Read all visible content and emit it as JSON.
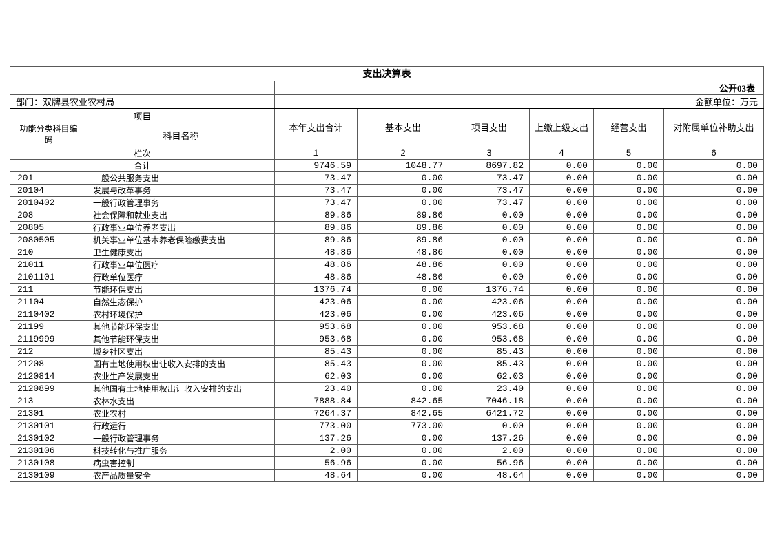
{
  "sheet": {
    "title": "支出决算表",
    "form_code": "公开03表",
    "department": "部门：双牌县农业农村局",
    "unit": "金额单位：万元"
  },
  "header": {
    "project_group": "项目",
    "code_col": "功能分类科目编码",
    "name_col": "科目名称",
    "value_cols": [
      "本年支出合计",
      "基本支出",
      "项目支出",
      "上缴上级支出",
      "经营支出",
      "对附属单位补助支出"
    ],
    "lanci_label": "栏次",
    "col_numbers": [
      "1",
      "2",
      "3",
      "4",
      "5",
      "6"
    ]
  },
  "rows": [
    {
      "merged": true,
      "code": "",
      "name": "合计",
      "values": [
        "9746.59",
        "1048.77",
        "8697.82",
        "0.00",
        "0.00",
        "0.00"
      ]
    },
    {
      "merged": false,
      "code": "201",
      "name": "一般公共服务支出",
      "values": [
        "73.47",
        "0.00",
        "73.47",
        "0.00",
        "0.00",
        "0.00"
      ]
    },
    {
      "merged": false,
      "code": "20104",
      "name": "发展与改革事务",
      "values": [
        "73.47",
        "0.00",
        "73.47",
        "0.00",
        "0.00",
        "0.00"
      ]
    },
    {
      "merged": false,
      "code": "2010402",
      "name": "一般行政管理事务",
      "values": [
        "73.47",
        "0.00",
        "73.47",
        "0.00",
        "0.00",
        "0.00"
      ]
    },
    {
      "merged": false,
      "code": "208",
      "name": "社会保障和就业支出",
      "values": [
        "89.86",
        "89.86",
        "0.00",
        "0.00",
        "0.00",
        "0.00"
      ]
    },
    {
      "merged": false,
      "code": "20805",
      "name": "行政事业单位养老支出",
      "values": [
        "89.86",
        "89.86",
        "0.00",
        "0.00",
        "0.00",
        "0.00"
      ]
    },
    {
      "merged": false,
      "code": "2080505",
      "name": "机关事业单位基本养老保险缴费支出",
      "values": [
        "89.86",
        "89.86",
        "0.00",
        "0.00",
        "0.00",
        "0.00"
      ]
    },
    {
      "merged": false,
      "code": "210",
      "name": "卫生健康支出",
      "values": [
        "48.86",
        "48.86",
        "0.00",
        "0.00",
        "0.00",
        "0.00"
      ]
    },
    {
      "merged": false,
      "code": "21011",
      "name": "行政事业单位医疗",
      "values": [
        "48.86",
        "48.86",
        "0.00",
        "0.00",
        "0.00",
        "0.00"
      ]
    },
    {
      "merged": false,
      "code": "2101101",
      "name": "行政单位医疗",
      "values": [
        "48.86",
        "48.86",
        "0.00",
        "0.00",
        "0.00",
        "0.00"
      ]
    },
    {
      "merged": false,
      "code": "211",
      "name": "节能环保支出",
      "values": [
        "1376.74",
        "0.00",
        "1376.74",
        "0.00",
        "0.00",
        "0.00"
      ]
    },
    {
      "merged": false,
      "code": "21104",
      "name": "自然生态保护",
      "values": [
        "423.06",
        "0.00",
        "423.06",
        "0.00",
        "0.00",
        "0.00"
      ]
    },
    {
      "merged": false,
      "code": "2110402",
      "name": "农村环境保护",
      "values": [
        "423.06",
        "0.00",
        "423.06",
        "0.00",
        "0.00",
        "0.00"
      ]
    },
    {
      "merged": false,
      "code": "21199",
      "name": "其他节能环保支出",
      "values": [
        "953.68",
        "0.00",
        "953.68",
        "0.00",
        "0.00",
        "0.00"
      ]
    },
    {
      "merged": false,
      "code": "2119999",
      "name": "其他节能环保支出",
      "values": [
        "953.68",
        "0.00",
        "953.68",
        "0.00",
        "0.00",
        "0.00"
      ]
    },
    {
      "merged": false,
      "code": "212",
      "name": "城乡社区支出",
      "values": [
        "85.43",
        "0.00",
        "85.43",
        "0.00",
        "0.00",
        "0.00"
      ]
    },
    {
      "merged": false,
      "code": "21208",
      "name": "国有土地使用权出让收入安排的支出",
      "values": [
        "85.43",
        "0.00",
        "85.43",
        "0.00",
        "0.00",
        "0.00"
      ]
    },
    {
      "merged": false,
      "code": "2120814",
      "name": "农业生产发展支出",
      "values": [
        "62.03",
        "0.00",
        "62.03",
        "0.00",
        "0.00",
        "0.00"
      ]
    },
    {
      "merged": false,
      "code": "2120899",
      "name": "其他国有土地使用权出让收入安排的支出",
      "values": [
        "23.40",
        "0.00",
        "23.40",
        "0.00",
        "0.00",
        "0.00"
      ]
    },
    {
      "merged": false,
      "code": "213",
      "name": "农林水支出",
      "values": [
        "7888.84",
        "842.65",
        "7046.18",
        "0.00",
        "0.00",
        "0.00"
      ]
    },
    {
      "merged": false,
      "code": "21301",
      "name": "农业农村",
      "values": [
        "7264.37",
        "842.65",
        "6421.72",
        "0.00",
        "0.00",
        "0.00"
      ]
    },
    {
      "merged": false,
      "code": "2130101",
      "name": "行政运行",
      "values": [
        "773.00",
        "773.00",
        "0.00",
        "0.00",
        "0.00",
        "0.00"
      ]
    },
    {
      "merged": false,
      "code": "2130102",
      "name": "一般行政管理事务",
      "values": [
        "137.26",
        "0.00",
        "137.26",
        "0.00",
        "0.00",
        "0.00"
      ]
    },
    {
      "merged": false,
      "code": "2130106",
      "name": "科技转化与推广服务",
      "values": [
        "2.00",
        "0.00",
        "2.00",
        "0.00",
        "0.00",
        "0.00"
      ]
    },
    {
      "merged": false,
      "code": "2130108",
      "name": "病虫害控制",
      "values": [
        "56.96",
        "0.00",
        "56.96",
        "0.00",
        "0.00",
        "0.00"
      ]
    },
    {
      "merged": false,
      "code": "2130109",
      "name": "农产品质量安全",
      "values": [
        "48.64",
        "0.00",
        "48.64",
        "0.00",
        "0.00",
        "0.00"
      ]
    }
  ]
}
